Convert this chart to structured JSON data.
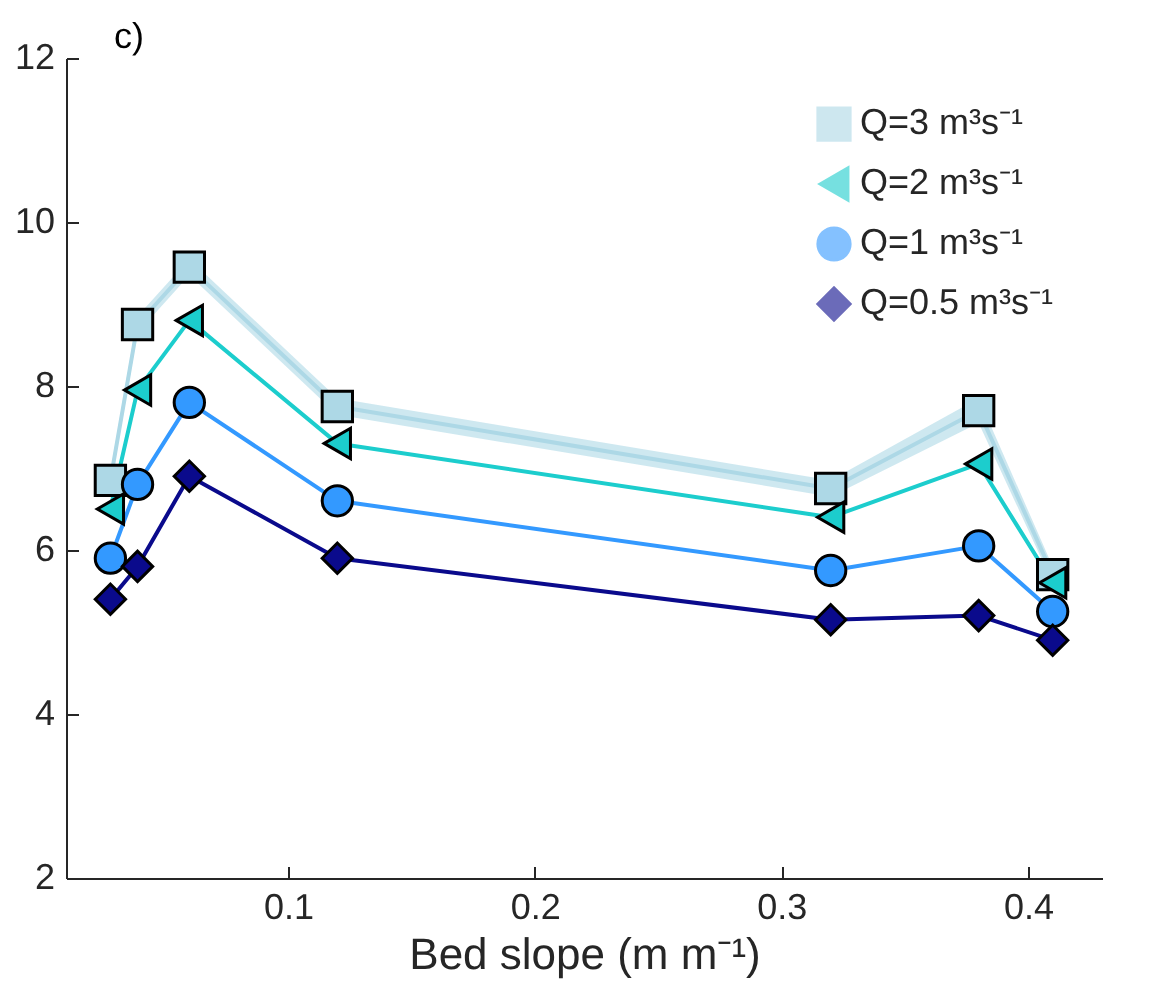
{
  "chart_data": {
    "type": "line",
    "title": "c)",
    "xlabel": "Bed slope (m m⁻¹)",
    "x": [
      0.028,
      0.039,
      0.06,
      0.12,
      0.32,
      0.38,
      0.41
    ],
    "series": [
      {
        "name": "Q=3 m³s⁻¹",
        "color": "#add8e6",
        "marker": "square",
        "values": [
          6.85,
          8.75,
          9.45,
          7.75,
          6.75,
          7.7,
          5.7
        ],
        "lower": [
          6.75,
          8.65,
          9.35,
          7.65,
          6.65,
          7.55,
          5.6
        ],
        "upper": [
          6.95,
          8.85,
          9.55,
          7.85,
          6.85,
          7.85,
          5.8
        ]
      },
      {
        "name": "Q=2 m³s⁻¹",
        "color": "#1ccdcd",
        "marker": "triangle",
        "values": [
          6.5,
          7.95,
          8.8,
          7.3,
          6.4,
          7.05,
          5.6
        ]
      },
      {
        "name": "Q=1 m³s⁻¹",
        "color": "#3399ff",
        "marker": "circle",
        "values": [
          5.9,
          6.8,
          7.8,
          6.6,
          5.75,
          6.05,
          5.25
        ]
      },
      {
        "name": "Q=0.5 m³s⁻¹",
        "color": "#0a0a8c",
        "marker": "diamond",
        "values": [
          5.4,
          5.8,
          6.9,
          5.9,
          5.15,
          5.2,
          4.9
        ]
      }
    ],
    "xlim": [
      0.01,
      0.43
    ],
    "xticks": [
      0.1,
      0.2,
      0.3,
      0.4
    ],
    "ylim": [
      2,
      12
    ],
    "yticks": [
      2,
      4,
      6,
      8,
      10,
      12
    ],
    "grid": false,
    "legend": "top right",
    "line_style": "solid"
  }
}
